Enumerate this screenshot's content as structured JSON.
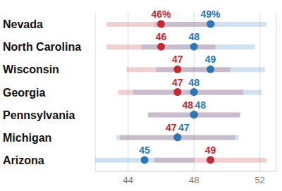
{
  "chart_data": {
    "type": "dot_range",
    "orientation": "horizontal",
    "categories": [
      "Nevada",
      "North Carolina",
      "Wisconsin",
      "Georgia",
      "Pennsylvania",
      "Michigan",
      "Arizona"
    ],
    "series": [
      {
        "color": "#c62a30",
        "values": [
          46,
          46,
          47,
          47,
          48,
          47,
          49
        ],
        "value_labels": [
          "46%",
          "46",
          "47",
          "47",
          "48",
          "47",
          "49"
        ],
        "low": [
          42.7,
          42.7,
          43.9,
          43.4,
          45.2,
          43.5,
          45.6
        ],
        "high": [
          49.3,
          49.3,
          50.2,
          51.0,
          50.8,
          50.5,
          52.4
        ]
      },
      {
        "color": "#2a78b6",
        "values": [
          49,
          48,
          49,
          48,
          48,
          47,
          45
        ],
        "value_labels": [
          "49%",
          "48",
          "49",
          "48",
          "48",
          "47",
          "45"
        ],
        "low": [
          45.6,
          44.8,
          45.7,
          44.3,
          45.2,
          43.3,
          42.0
        ],
        "high": [
          52.4,
          51.7,
          52.3,
          52.1,
          50.8,
          50.7,
          48.0
        ]
      }
    ],
    "xlim": [
      42,
      53
    ],
    "xticks": [
      44,
      48,
      52
    ],
    "grid": true,
    "data_labels": true
  }
}
